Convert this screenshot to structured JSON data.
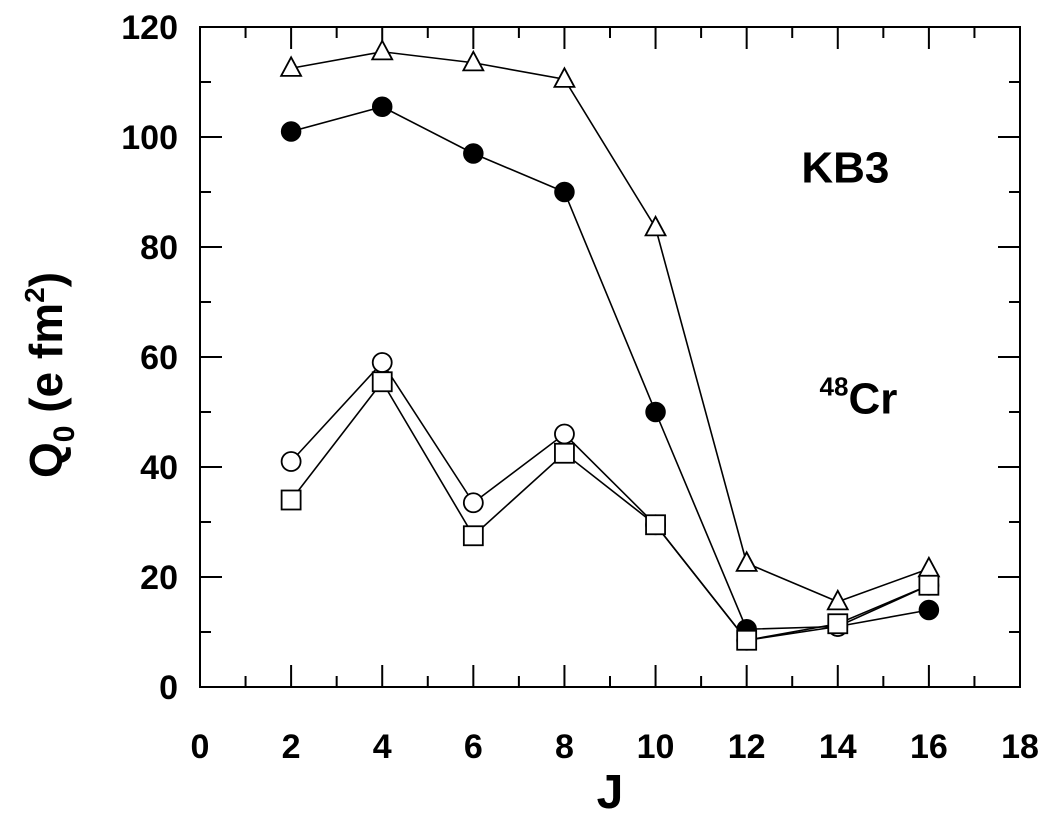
{
  "chart_data": {
    "type": "line",
    "xlabel": "J",
    "ylabel": {
      "main": "Q",
      "sub": "0",
      "unit_pre": "(e  fm",
      "unit_sup": "2",
      "unit_post": ")"
    },
    "xlim": [
      0,
      18
    ],
    "ylim": [
      0,
      120
    ],
    "x_ticks": [
      0,
      2,
      4,
      6,
      8,
      10,
      12,
      14,
      16,
      18
    ],
    "y_ticks": [
      0,
      20,
      40,
      60,
      80,
      100,
      120
    ],
    "grid": false,
    "annotations": [
      {
        "text": "KB3",
        "x": 13.2,
        "y": 95
      },
      {
        "sup": "48",
        "text": "Cr",
        "x": 13.6,
        "y": 53
      }
    ],
    "series": [
      {
        "marker": "triangle-open",
        "x": [
          2,
          4,
          6,
          8,
          10,
          12,
          14,
          16
        ],
        "y": [
          112.5,
          115.5,
          113.5,
          110.5,
          83.5,
          22.5,
          15.5,
          21.5
        ]
      },
      {
        "marker": "circle-filled",
        "x": [
          2,
          4,
          6,
          8,
          10,
          12,
          14,
          16
        ],
        "y": [
          101,
          105.5,
          97,
          90,
          50,
          10.5,
          11,
          14
        ]
      },
      {
        "marker": "circle-open",
        "x": [
          2,
          4,
          6,
          8,
          10,
          12,
          14,
          16
        ],
        "y": [
          41,
          59,
          33.5,
          46,
          29.5,
          8.5,
          11,
          18.5
        ]
      },
      {
        "marker": "square-open",
        "x": [
          2,
          4,
          6,
          8,
          10,
          12,
          14,
          16
        ],
        "y": [
          34,
          55.5,
          27.5,
          42.5,
          29.5,
          8.5,
          11.5,
          18.5
        ]
      }
    ]
  }
}
